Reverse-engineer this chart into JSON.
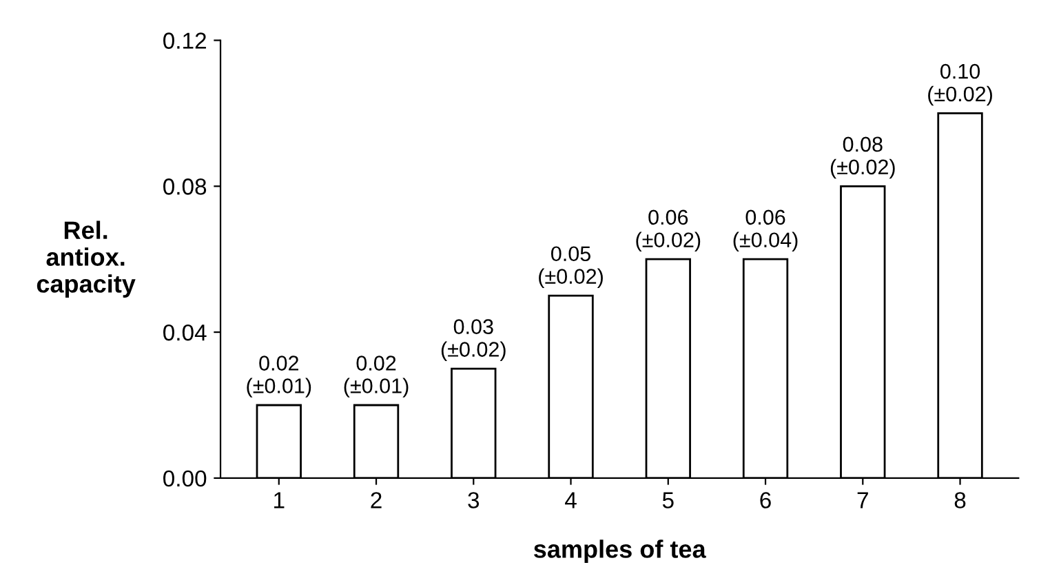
{
  "chart_data": {
    "type": "bar",
    "xlabel": "samples of tea",
    "ylabel": "Rel.\nantiox.\ncapacity",
    "categories": [
      "1",
      "2",
      "3",
      "4",
      "5",
      "6",
      "7",
      "8"
    ],
    "values": [
      0.02,
      0.02,
      0.03,
      0.05,
      0.06,
      0.06,
      0.08,
      0.1
    ],
    "value_labels": [
      "0.02\n(±0.01)",
      "0.02\n(±0.01)",
      "0.03\n(±0.02)",
      "0.05\n(±0.02)",
      "0.06\n(±0.02)",
      "0.06\n(±0.04)",
      "0.08\n(±0.02)",
      "0.10\n(±0.02)"
    ],
    "color": "#ffffff",
    "ylim": [
      0,
      0.12
    ],
    "yticks": [
      {
        "value": 0,
        "label": "0.00"
      },
      {
        "value": 0.04,
        "label": "0.04"
      },
      {
        "value": 0.08,
        "label": "0.08"
      },
      {
        "value": 0.12,
        "label": "0.12"
      }
    ],
    "grid": false,
    "legend": false
  }
}
